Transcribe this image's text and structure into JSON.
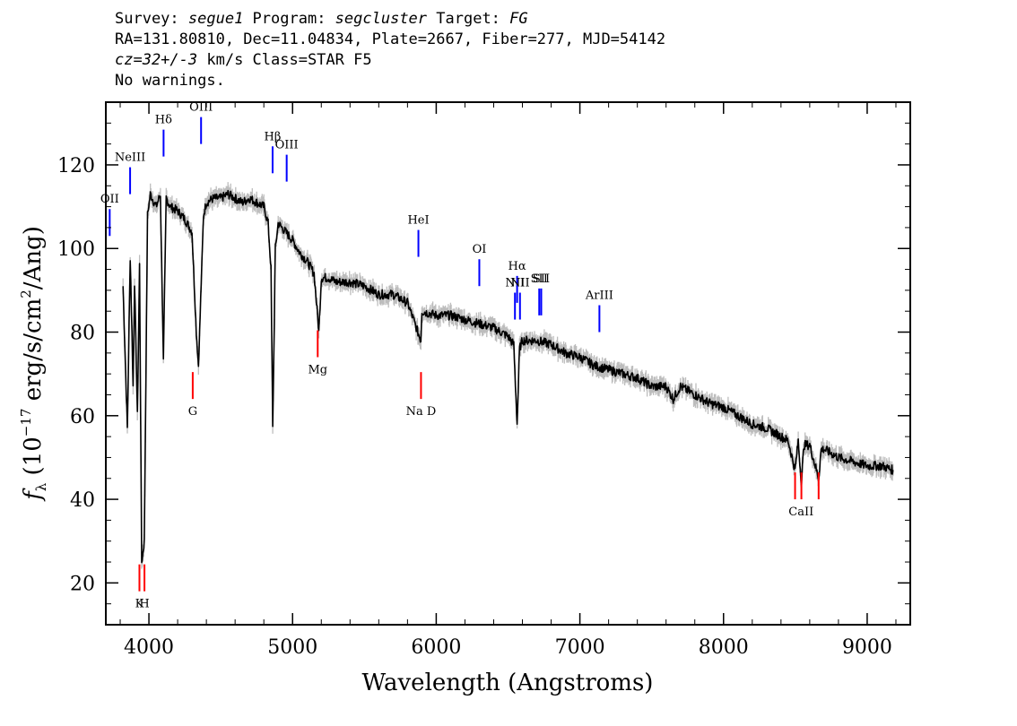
{
  "header": {
    "line1_prefix": "Survey: ",
    "survey": "segue1",
    "line1_mid": " Program: ",
    "program": "segcluster",
    "line1_mid2": " Target: ",
    "target": "FG",
    "line2": "RA=131.80810, Dec=11.04834, Plate=2667, Fiber=277, MJD=54142",
    "cz": "cz=32+/-3",
    "line3_rest": " km/s Class=STAR F5",
    "line4": "No warnings."
  },
  "chart_data": {
    "type": "line",
    "xlabel": "Wavelength (Angstroms)",
    "ylabel": "f_λ (10^-17 erg/s/cm^2/Ang)",
    "xlim": [
      3700,
      9300
    ],
    "ylim": [
      10,
      135
    ],
    "xticks": [
      4000,
      5000,
      6000,
      7000,
      8000,
      9000
    ],
    "yticks": [
      20,
      40,
      60,
      80,
      100,
      120
    ],
    "series": [
      {
        "color": "#000000",
        "x": [
          3820,
          3850,
          3870,
          3890,
          3900,
          3920,
          3935,
          3950,
          3968,
          3990,
          4010,
          4050,
          4080,
          4101,
          4120,
          4150,
          4200,
          4250,
          4300,
          4330,
          4345,
          4380,
          4400,
          4450,
          4500,
          4550,
          4600,
          4650,
          4700,
          4750,
          4800,
          4830,
          4850,
          4862,
          4880,
          4900,
          4950,
          5000,
          5050,
          5100,
          5150,
          5183,
          5200,
          5250,
          5300,
          5400,
          5500,
          5600,
          5700,
          5800,
          5893,
          5900,
          6000,
          6100,
          6200,
          6300,
          6400,
          6500,
          6540,
          6563,
          6580,
          6600,
          6700,
          6800,
          6900,
          7000,
          7100,
          7200,
          7300,
          7400,
          7500,
          7600,
          7650,
          7700,
          7800,
          7900,
          8000,
          8100,
          8200,
          8300,
          8400,
          8450,
          8498,
          8520,
          8542,
          8560,
          8600,
          8662,
          8680,
          8700,
          8800,
          8900,
          9000,
          9100,
          9180
        ],
        "y": [
          91,
          57,
          98,
          67,
          92,
          60,
          96,
          25,
          30,
          108,
          113,
          110,
          113,
          73,
          112,
          110,
          109,
          107,
          104,
          80,
          72,
          108,
          111,
          112,
          112,
          113,
          112,
          111,
          112,
          111,
          110,
          106,
          95,
          57,
          100,
          106,
          104,
          102,
          99,
          97,
          94,
          80,
          93,
          93,
          92,
          92,
          91,
          89,
          89,
          87,
          78,
          85,
          84,
          84,
          83,
          82,
          81,
          79,
          77,
          58,
          76,
          78,
          78,
          77,
          75,
          74,
          72,
          71,
          70,
          69,
          67,
          67,
          64,
          67,
          65,
          63,
          62,
          60,
          58,
          57,
          55,
          54,
          47,
          54,
          44,
          53,
          53,
          45,
          52,
          52,
          50,
          49,
          48,
          48,
          47
        ]
      }
    ],
    "lines": [
      {
        "label": "OII",
        "wave": 3727,
        "color": "#0000ff",
        "side": "top",
        "value": 103
      },
      {
        "label": "NeIII",
        "wave": 3869,
        "color": "#0000ff",
        "side": "top",
        "value": 113
      },
      {
        "label": "Hδ",
        "wave": 4102,
        "color": "#0000ff",
        "side": "top",
        "value": 122
      },
      {
        "label": "OIII",
        "wave": 4363,
        "color": "#0000ff",
        "side": "top",
        "value": 125
      },
      {
        "label": "Hβ",
        "wave": 4861,
        "color": "#0000ff",
        "side": "top",
        "value": 118
      },
      {
        "label": "OIII",
        "wave": 4959,
        "color": "#0000ff",
        "side": "top",
        "value": 116
      },
      {
        "label": "HeI",
        "wave": 5876,
        "color": "#0000ff",
        "side": "top",
        "value": 98
      },
      {
        "label": "OI",
        "wave": 6300,
        "color": "#0000ff",
        "side": "top",
        "value": 91
      },
      {
        "label": "NII",
        "wave": 6548,
        "color": "#0000ff",
        "side": "top",
        "value": 83
      },
      {
        "label": "Hα",
        "wave": 6563,
        "color": "#0000ff",
        "side": "top",
        "value": 87
      },
      {
        "label": "NII",
        "wave": 6583,
        "color": "#0000ff",
        "side": "top",
        "value": 83
      },
      {
        "label": "SII",
        "wave": 6717,
        "color": "#0000ff",
        "side": "top",
        "value": 84
      },
      {
        "label": "SII",
        "wave": 6731,
        "color": "#0000ff",
        "side": "top",
        "value": 84
      },
      {
        "label": "ArIII",
        "wave": 7136,
        "color": "#0000ff",
        "side": "top",
        "value": 80
      },
      {
        "label": "K",
        "wave": 3934,
        "color": "#ff0000",
        "side": "bottom",
        "value": 18
      },
      {
        "label": "H",
        "wave": 3969,
        "color": "#ff0000",
        "side": "bottom",
        "value": 18
      },
      {
        "label": "G",
        "wave": 4305,
        "color": "#ff0000",
        "side": "bottom",
        "value": 64
      },
      {
        "label": "Mg",
        "wave": 5175,
        "color": "#ff0000",
        "side": "bottom",
        "value": 74
      },
      {
        "label": "Na D",
        "wave": 5894,
        "color": "#ff0000",
        "side": "bottom",
        "value": 64
      },
      {
        "label": "CaII",
        "wave": 8498,
        "color": "#ff0000",
        "side": "bottom",
        "value": 40
      },
      {
        "label": "CaII",
        "wave": 8542,
        "color": "#ff0000",
        "side": "bottom",
        "value": 40
      },
      {
        "label": "CaII",
        "wave": 8662,
        "color": "#ff0000",
        "side": "bottom",
        "value": 40
      }
    ]
  }
}
